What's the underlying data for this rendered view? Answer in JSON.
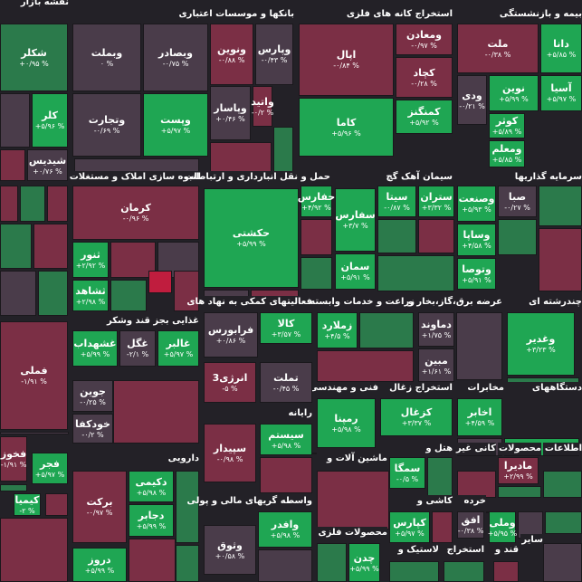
{
  "header": {
    "title": "نقشه بازار"
  },
  "sectors": [
    {
      "title": "بانکها و موسسات اعتباری"
    },
    {
      "title": "استخراج کانه های فلزی"
    },
    {
      "title": "بیمه و بازنشستگی"
    },
    {
      "title": "انبوه سازی املاک و مستغلات"
    },
    {
      "title": "حمل و نقل انبارداری و ارتباطات"
    },
    {
      "title": "سیمان آهک گچ"
    },
    {
      "title": "سرمایه گذاریها"
    },
    {
      "title": "غذایی بجز قند وشکر"
    },
    {
      "title": "فعالیتهای کمکی به نهاد های"
    },
    {
      "title": "زراعت و خدمات وابسته"
    },
    {
      "title": "عرضه برق،گاز،بخار و"
    },
    {
      "title": "چندرشته ای"
    },
    {
      "title": "رایانه"
    },
    {
      "title": "فنی و مهندسی"
    },
    {
      "title": "استخراج زغال"
    },
    {
      "title": "مخابرات"
    },
    {
      "title": "دستگاههای"
    },
    {
      "title": "دارویی"
    },
    {
      "title": "ماشین آلات و"
    },
    {
      "title": "هتل و"
    },
    {
      "title": "کانی غیر"
    },
    {
      "title": "محصولات"
    },
    {
      "title": "اطلاعات"
    },
    {
      "title": "واسطه گریهای مالی و پولی"
    },
    {
      "title": "کاشی و"
    },
    {
      "title": "خرده"
    },
    {
      "title": "محصولات فلزی"
    },
    {
      "title": "لاستیک و"
    },
    {
      "title": "استخراج"
    },
    {
      "title": "قند و"
    },
    {
      "title": "سایر"
    }
  ],
  "tiles": [
    {
      "name": "شکلر",
      "change": "+۰/۹۵ %"
    },
    {
      "name": "وبملت",
      "change": "۰ %"
    },
    {
      "name": "وبصادر",
      "change": "-۰/۷۵ %"
    },
    {
      "name": "وتجارت",
      "change": "-۰/۶۹ %"
    },
    {
      "name": "وپست",
      "change": "+۵/۹۷ %"
    },
    {
      "name": "ونوین",
      "change": "-۰/۸۸ %"
    },
    {
      "name": "وپارس",
      "change": "-۰/۴۳ %"
    },
    {
      "name": "وپاسار",
      "change": "+۰/۴۶ %"
    },
    {
      "name": "واتید",
      "change": "-۰/۲ %"
    },
    {
      "name": "کلر",
      "change": "+۵/۹۶ %"
    },
    {
      "name": "شیدیس",
      "change": "+۰/۷۶ %"
    },
    {
      "name": "اپال",
      "change": "-۰/۸۴ %"
    },
    {
      "name": "ومعادن",
      "change": "-۰/۹۷ %"
    },
    {
      "name": "کچاد",
      "change": "-۰/۲۸ %"
    },
    {
      "name": "کمنگنز",
      "change": "+۵/۹۲ %"
    },
    {
      "name": "کاما",
      "change": "+۵/۹۶ %"
    },
    {
      "name": "ملت",
      "change": "-۰/۳۸ %"
    },
    {
      "name": "دانا",
      "change": "+۵/۸۵ %"
    },
    {
      "name": "آسیا",
      "change": "+۵/۹۷ %"
    },
    {
      "name": "نوین",
      "change": "+۵/۹۹ %"
    },
    {
      "name": "ودی",
      "change": "-۰/۲۱ %"
    },
    {
      "name": "کوثر",
      "change": "+۵/۸۹ %"
    },
    {
      "name": "ومعلم",
      "change": "+۵/۸۵ %"
    },
    {
      "name": "کرمان",
      "change": "-۰/۹۶ %"
    },
    {
      "name": "ثنور",
      "change": "+۲/۹۲ %"
    },
    {
      "name": "ثشاهد",
      "change": "+۲/۹۸ %"
    },
    {
      "name": "حکشتی",
      "change": "+۵/۹۹ %"
    },
    {
      "name": "حفارس",
      "change": "+۴/۹۲ %"
    },
    {
      "name": "سفارس",
      "change": "+۳/۷ %"
    },
    {
      "name": "سیتا",
      "change": "-۰/۸۷ %"
    },
    {
      "name": "ستران",
      "change": "+۳/۳۲ %"
    },
    {
      "name": "سمان",
      "change": "+۵/۹۱ %"
    },
    {
      "name": "صبا",
      "change": "-۰/۲۷ %"
    },
    {
      "name": "وصنعت",
      "change": "+۵/۹۳ %"
    },
    {
      "name": "وساپا",
      "change": "+۴/۵۸ %"
    },
    {
      "name": "وتوصا",
      "change": "+۵/۹۱ %"
    },
    {
      "name": "فملی",
      "change": "-۱/۹۱ %"
    },
    {
      "name": "غشهداب",
      "change": "+۵/۹۹ %"
    },
    {
      "name": "غگل",
      "change": "-۲/۱ %"
    },
    {
      "name": "غالبر",
      "change": "+۵/۹۷ %"
    },
    {
      "name": "جوین",
      "change": "-۰/۲۵ %"
    },
    {
      "name": "خودکفا",
      "change": "-۰/۲ %"
    },
    {
      "name": "فرابورس",
      "change": "+۰/۸۶ %"
    },
    {
      "name": "کالا",
      "change": "+۳/۵۷ %"
    },
    {
      "name": "انرژی3",
      "change": "-۵ %"
    },
    {
      "name": "تملت",
      "change": "-۰/۴۵ %"
    },
    {
      "name": "زملارد",
      "change": "+۴/۵ %"
    },
    {
      "name": "دماوند",
      "change": "+۱/۷۵ %"
    },
    {
      "name": "مبین",
      "change": "+۱/۶۱ %"
    },
    {
      "name": "وغدیر",
      "change": "+۳/۲۳ %"
    },
    {
      "name": "رمپنا",
      "change": "+۵/۹۸ %"
    },
    {
      "name": "کزغال",
      "change": "+۳/۳۷ %"
    },
    {
      "name": "اخابر",
      "change": "+۴/۵۹ %"
    },
    {
      "name": "سیستم",
      "change": "+۵/۹۸ %"
    },
    {
      "name": "سپیدار",
      "change": "-۰/۹۸ %"
    },
    {
      "name": "فجر",
      "change": "+۵/۹۷ %"
    },
    {
      "name": "فخوز",
      "change": "-۱/۹۱ %"
    },
    {
      "name": "کیمیا",
      "change": "-۲ %"
    },
    {
      "name": "برکت",
      "change": "-۰/۹۷ %"
    },
    {
      "name": "دکیمی",
      "change": "+۵/۹۸ %"
    },
    {
      "name": "دجابر",
      "change": "+۵/۹۹ %"
    },
    {
      "name": "دروز",
      "change": "+۵/۹۹ %"
    },
    {
      "name": "سمگا",
      "change": "-۰/۵ %"
    },
    {
      "name": "مادیرا",
      "change": "+۲/۹۹ %"
    },
    {
      "name": "وافدر",
      "change": "+۵/۹۸ %"
    },
    {
      "name": "وثوق",
      "change": "+۰/۵۸ %"
    },
    {
      "name": "چدن",
      "change": "+۵/۹۹ %"
    },
    {
      "name": "کپارس",
      "change": "+۵/۹۷ %"
    },
    {
      "name": "افق",
      "change": "-۰/۳۸ %"
    },
    {
      "name": "وملی",
      "change": "+۵/۹۵ %"
    }
  ]
}
